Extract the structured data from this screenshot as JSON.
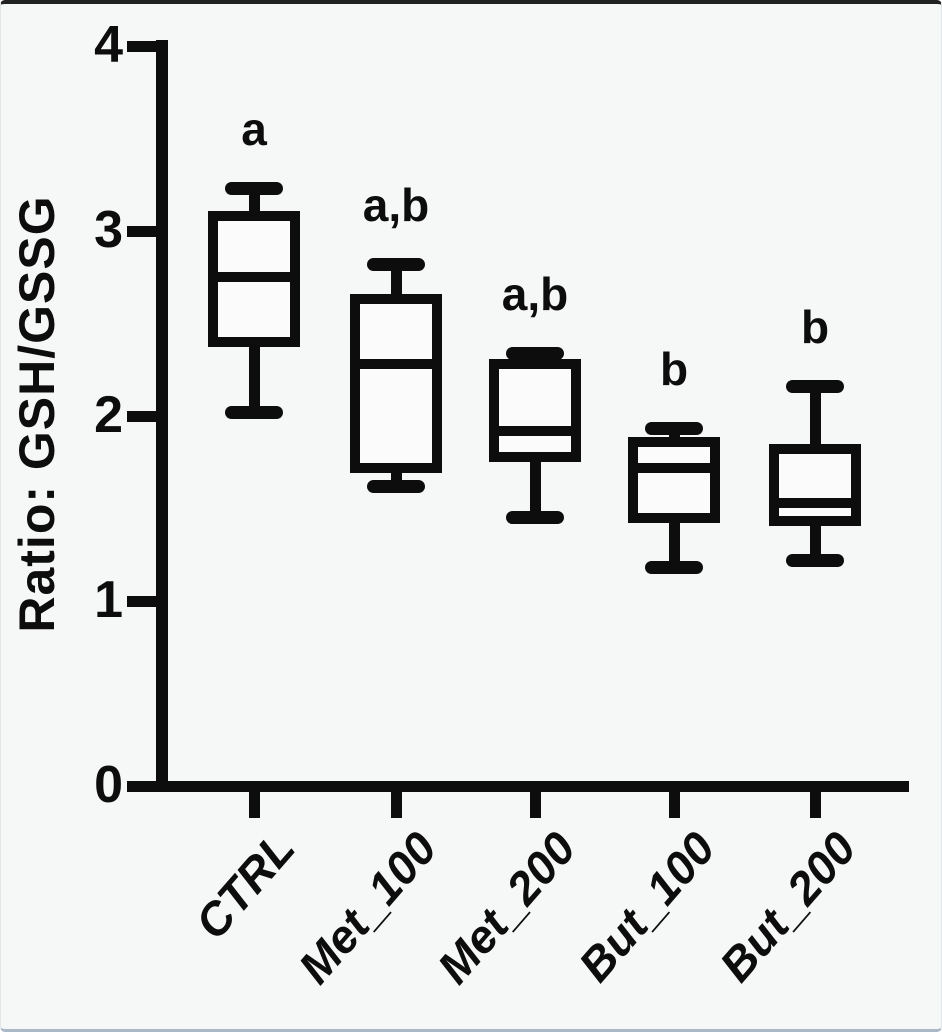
{
  "figure": {
    "background": "#f6f7f7",
    "ink": "#0d0d0d"
  },
  "chart_data": {
    "type": "box",
    "title": "",
    "xlabel": "",
    "ylabel": "Ratio: GSH/GSSG",
    "ylim": [
      0,
      4
    ],
    "yticks": [
      "0",
      "1",
      "2",
      "3",
      "4"
    ],
    "grid": false,
    "legend": "none",
    "categories": [
      "CTRL",
      "Met_100",
      "Met_200",
      "But_100",
      "But_200"
    ],
    "series": [
      {
        "name": "CTRL",
        "min": 2.02,
        "q1": 2.4,
        "median": 2.75,
        "q3": 3.08,
        "max": 3.23,
        "annotation": "a"
      },
      {
        "name": "Met_100",
        "min": 1.62,
        "q1": 1.72,
        "median": 2.28,
        "q3": 2.63,
        "max": 2.82,
        "annotation": "a,b"
      },
      {
        "name": "Met_200",
        "min": 1.45,
        "q1": 1.78,
        "median": 1.92,
        "q3": 2.28,
        "max": 2.34,
        "annotation": "a,b"
      },
      {
        "name": "But_100",
        "min": 1.18,
        "q1": 1.45,
        "median": 1.72,
        "q3": 1.86,
        "max": 1.93,
        "annotation": "b"
      },
      {
        "name": "But_200",
        "min": 1.22,
        "q1": 1.43,
        "median": 1.53,
        "q3": 1.82,
        "max": 2.16,
        "annotation": "b"
      }
    ]
  }
}
